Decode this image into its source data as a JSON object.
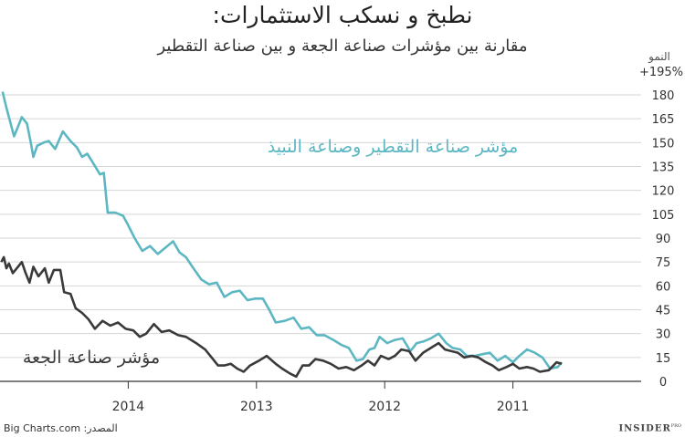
{
  "chart_data": {
    "type": "line",
    "title": "نطبخ و نسكب الاستثمارات:",
    "subtitle": "مقارنة بين مؤشرات صناعة الجعة و بين صناعة التقطير",
    "ylabel": "النمو",
    "ymax_label": "+195%",
    "yticks": [
      0,
      15,
      30,
      45,
      60,
      75,
      90,
      105,
      120,
      135,
      150,
      165,
      180
    ],
    "ylim": [
      0,
      195
    ],
    "x_ticks": [
      {
        "label": "2014",
        "x": 2014.0
      },
      {
        "label": "2013",
        "x": 2013.0
      },
      {
        "label": "2012",
        "x": 2012.0
      },
      {
        "label": "2011",
        "x": 2011.0
      }
    ],
    "x_direction": "reversed",
    "xlim": [
      2010.0,
      2015.0
    ],
    "grid": true,
    "series": [
      {
        "name": "مؤشر صناعة التقطير وصناعة النبيذ",
        "color": "#5db7c3",
        "points": [
          [
            2014.98,
            182
          ],
          [
            2014.95,
            172
          ],
          [
            2014.92,
            163
          ],
          [
            2014.89,
            154
          ],
          [
            2014.86,
            160
          ],
          [
            2014.83,
            166
          ],
          [
            2014.79,
            162
          ],
          [
            2014.76,
            150
          ],
          [
            2014.74,
            141
          ],
          [
            2014.71,
            148
          ],
          [
            2014.66,
            150
          ],
          [
            2014.62,
            151
          ],
          [
            2014.57,
            146
          ],
          [
            2014.51,
            157
          ],
          [
            2014.45,
            151
          ],
          [
            2014.4,
            147
          ],
          [
            2014.36,
            141
          ],
          [
            2014.32,
            143
          ],
          [
            2014.28,
            138
          ],
          [
            2014.22,
            130
          ],
          [
            2014.19,
            131
          ],
          [
            2014.16,
            106
          ],
          [
            2014.1,
            106
          ],
          [
            2014.04,
            104
          ],
          [
            2014.0,
            98
          ],
          [
            2013.95,
            90
          ],
          [
            2013.89,
            82
          ],
          [
            2013.83,
            85
          ],
          [
            2013.77,
            80
          ],
          [
            2013.71,
            84
          ],
          [
            2013.65,
            88
          ],
          [
            2013.6,
            81
          ],
          [
            2013.55,
            78
          ],
          [
            2013.5,
            72
          ],
          [
            2013.43,
            64
          ],
          [
            2013.37,
            61
          ],
          [
            2013.31,
            62
          ],
          [
            2013.25,
            53
          ],
          [
            2013.19,
            56
          ],
          [
            2013.13,
            57
          ],
          [
            2013.07,
            51
          ],
          [
            2013.01,
            52
          ],
          [
            2012.95,
            52
          ],
          [
            2012.9,
            45
          ],
          [
            2012.85,
            37
          ],
          [
            2012.78,
            38
          ],
          [
            2012.71,
            40
          ],
          [
            2012.65,
            33
          ],
          [
            2012.59,
            34
          ],
          [
            2012.53,
            29
          ],
          [
            2012.47,
            29
          ],
          [
            2012.4,
            26
          ],
          [
            2012.34,
            23
          ],
          [
            2012.28,
            21
          ],
          [
            2012.22,
            13
          ],
          [
            2012.17,
            14
          ],
          [
            2012.12,
            20
          ],
          [
            2012.08,
            21
          ],
          [
            2012.04,
            28
          ],
          [
            2011.98,
            24
          ],
          [
            2011.92,
            26
          ],
          [
            2011.86,
            27
          ],
          [
            2011.8,
            19
          ],
          [
            2011.75,
            24
          ],
          [
            2011.7,
            25
          ],
          [
            2011.64,
            27
          ],
          [
            2011.58,
            30
          ],
          [
            2011.52,
            24
          ],
          [
            2011.47,
            21
          ],
          [
            2011.41,
            20
          ],
          [
            2011.36,
            16
          ],
          [
            2011.3,
            16
          ],
          [
            2011.24,
            17
          ],
          [
            2011.18,
            18
          ],
          [
            2011.12,
            13
          ],
          [
            2011.06,
            16
          ],
          [
            2011.0,
            12
          ],
          [
            2010.95,
            16
          ],
          [
            2010.89,
            20
          ],
          [
            2010.83,
            18
          ],
          [
            2010.77,
            15
          ],
          [
            2010.71,
            8
          ],
          [
            2010.65,
            9
          ],
          [
            2010.62,
            12
          ]
        ]
      },
      {
        "name": "مؤشر صناعة الجعة",
        "color": "#3a3a3a",
        "points": [
          [
            2014.99,
            75
          ],
          [
            2014.97,
            78
          ],
          [
            2014.95,
            71
          ],
          [
            2014.93,
            74
          ],
          [
            2014.9,
            68
          ],
          [
            2014.86,
            72
          ],
          [
            2014.83,
            75
          ],
          [
            2014.8,
            68
          ],
          [
            2014.77,
            62
          ],
          [
            2014.74,
            72
          ],
          [
            2014.7,
            66
          ],
          [
            2014.65,
            71
          ],
          [
            2014.62,
            62
          ],
          [
            2014.58,
            70
          ],
          [
            2014.53,
            70
          ],
          [
            2014.5,
            56
          ],
          [
            2014.45,
            55
          ],
          [
            2014.41,
            46
          ],
          [
            2014.36,
            43
          ],
          [
            2014.31,
            39
          ],
          [
            2014.26,
            33
          ],
          [
            2014.2,
            38
          ],
          [
            2014.14,
            35
          ],
          [
            2014.08,
            37
          ],
          [
            2014.02,
            33
          ],
          [
            2013.96,
            32
          ],
          [
            2013.91,
            28
          ],
          [
            2013.86,
            30
          ],
          [
            2013.8,
            36
          ],
          [
            2013.74,
            31
          ],
          [
            2013.68,
            32
          ],
          [
            2013.61,
            29
          ],
          [
            2013.55,
            28
          ],
          [
            2013.47,
            24
          ],
          [
            2013.4,
            20
          ],
          [
            2013.35,
            15
          ],
          [
            2013.3,
            10
          ],
          [
            2013.25,
            10
          ],
          [
            2013.2,
            11
          ],
          [
            2013.15,
            8
          ],
          [
            2013.1,
            6
          ],
          [
            2013.05,
            10
          ],
          [
            2012.98,
            13
          ],
          [
            2012.92,
            16
          ],
          [
            2012.85,
            11
          ],
          [
            2012.8,
            8
          ],
          [
            2012.74,
            5
          ],
          [
            2012.69,
            3
          ],
          [
            2012.64,
            10
          ],
          [
            2012.59,
            10
          ],
          [
            2012.54,
            14
          ],
          [
            2012.48,
            13
          ],
          [
            2012.42,
            11
          ],
          [
            2012.36,
            8
          ],
          [
            2012.3,
            9
          ],
          [
            2012.24,
            7
          ],
          [
            2012.18,
            10
          ],
          [
            2012.13,
            13
          ],
          [
            2012.08,
            10
          ],
          [
            2012.03,
            16
          ],
          [
            2011.97,
            14
          ],
          [
            2011.92,
            16
          ],
          [
            2011.87,
            20
          ],
          [
            2011.81,
            19
          ],
          [
            2011.76,
            13
          ],
          [
            2011.7,
            18
          ],
          [
            2011.64,
            21
          ],
          [
            2011.58,
            24
          ],
          [
            2011.53,
            20
          ],
          [
            2011.48,
            19
          ],
          [
            2011.43,
            18
          ],
          [
            2011.38,
            15
          ],
          [
            2011.32,
            16
          ],
          [
            2011.27,
            15
          ],
          [
            2011.21,
            12
          ],
          [
            2011.16,
            10
          ],
          [
            2011.11,
            7
          ],
          [
            2011.05,
            9
          ],
          [
            2011.0,
            11
          ],
          [
            2010.95,
            8
          ],
          [
            2010.89,
            9
          ],
          [
            2010.84,
            8
          ],
          [
            2010.79,
            6
          ],
          [
            2010.72,
            7
          ],
          [
            2010.66,
            12
          ],
          [
            2010.62,
            11
          ]
        ]
      }
    ]
  },
  "footer": {
    "source": "المصدر: Big Charts.com",
    "brand": "INSIDER",
    "brand_sup": "PRO"
  }
}
